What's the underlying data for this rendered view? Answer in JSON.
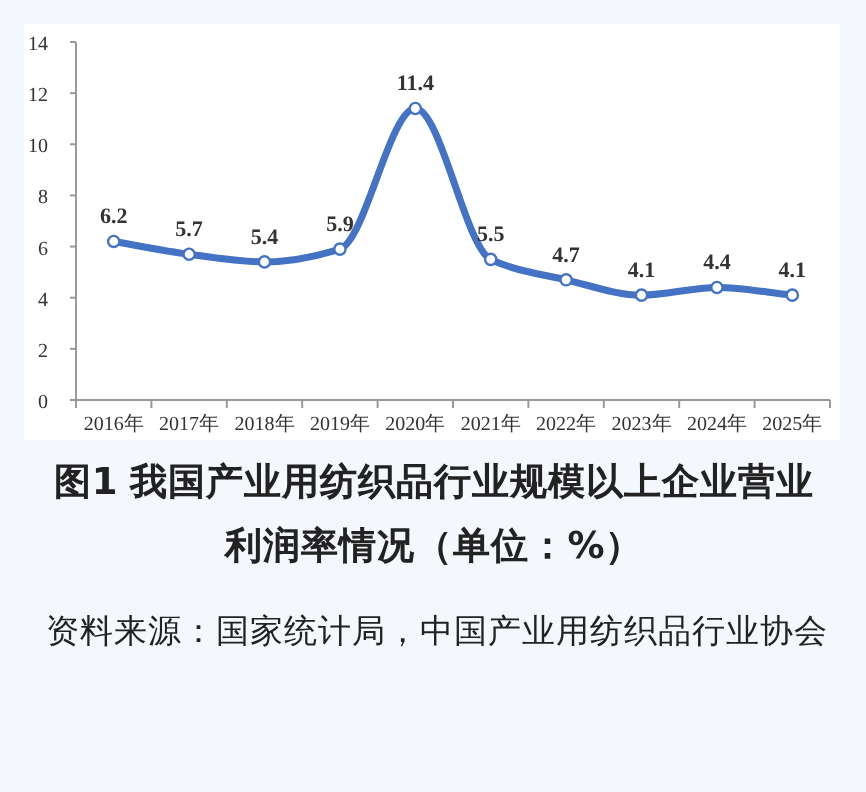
{
  "chart_data": {
    "type": "line",
    "title": "图1  我国产业用纺织品行业规模以上企业营业利润率情况（单位：%）",
    "annotations": [
      "资料来源：国家统计局，中国产业用纺织品行业协会"
    ],
    "categories": [
      "2016年",
      "2017年",
      "2018年",
      "2019年",
      "2020年",
      "2021年",
      "2022年",
      "2023年",
      "2024年",
      "2025年"
    ],
    "values": [
      6.2,
      5.7,
      5.4,
      5.9,
      11.4,
      5.5,
      4.7,
      4.1,
      4.4,
      4.1
    ],
    "color": "#4472c4",
    "marker": "circle",
    "data_labels": true,
    "ylim": [
      0,
      14
    ],
    "yticks": [
      0,
      2,
      4,
      6,
      8,
      10,
      12,
      14
    ]
  }
}
